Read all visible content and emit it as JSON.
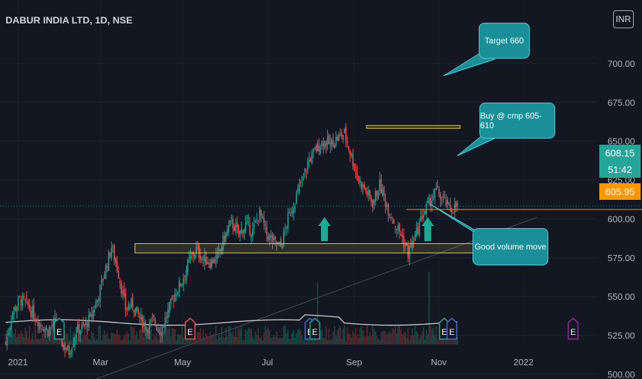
{
  "title": "DABUR INDIA LTD, 1D, NSE",
  "currency_button": "INR",
  "price_tags": {
    "last_price": "608.15",
    "countdown": "51:42",
    "level": "605.95"
  },
  "callouts": {
    "target": "Target 660",
    "buy": "Buy @ cmp 605-610",
    "volume": "Good volume move"
  },
  "event_marker_label": "E",
  "colors": {
    "up": "#26a69a",
    "down": "#ef5350",
    "zone": "#f0d84b",
    "callout": "#1b8f97",
    "arrow": "#1fa895",
    "background": "#131722"
  },
  "chart_data": {
    "type": "candlestick",
    "title": "DABUR INDIA LTD, 1D, NSE",
    "ylim": [
      488,
      700
    ],
    "y_ticks": [
      500,
      525,
      550,
      575,
      600,
      625,
      650,
      675,
      700
    ],
    "y_tick_labels": [
      "500.00",
      "525.00",
      "550.00",
      "575.00",
      "600.00",
      "625.00",
      "650.00",
      "675.00",
      "700.00"
    ],
    "x_labels": [
      "2021",
      "Mar",
      "May",
      "Jul",
      "Sep",
      "Nov",
      "2022"
    ],
    "last_price": 608.15,
    "horizontal_level": 605.95,
    "zones": [
      {
        "name": "support",
        "from": 578,
        "to": 584
      },
      {
        "name": "target",
        "from": 658.5,
        "to": 660
      }
    ],
    "close_path": [
      [
        1,
        520
      ],
      [
        6,
        540
      ],
      [
        11,
        548
      ],
      [
        16,
        545
      ],
      [
        21,
        538
      ],
      [
        26,
        532
      ],
      [
        31,
        528
      ],
      [
        36,
        533
      ],
      [
        41,
        520
      ],
      [
        46,
        514
      ],
      [
        51,
        528
      ],
      [
        56,
        530
      ],
      [
        61,
        536
      ],
      [
        66,
        548
      ],
      [
        71,
        565
      ],
      [
        76,
        582
      ],
      [
        81,
        565
      ],
      [
        86,
        542
      ],
      [
        91,
        545
      ],
      [
        96,
        536
      ],
      [
        101,
        530
      ],
      [
        106,
        534
      ],
      [
        111,
        528
      ],
      [
        116,
        540
      ],
      [
        121,
        552
      ],
      [
        126,
        560
      ],
      [
        131,
        573
      ],
      [
        136,
        580
      ],
      [
        141,
        574
      ],
      [
        146,
        572
      ],
      [
        151,
        575
      ],
      [
        156,
        588
      ],
      [
        161,
        598
      ],
      [
        166,
        590
      ],
      [
        171,
        596
      ],
      [
        176,
        592
      ],
      [
        181,
        604
      ],
      [
        186,
        590
      ],
      [
        191,
        585
      ],
      [
        196,
        582
      ],
      [
        201,
        600
      ],
      [
        206,
        612
      ],
      [
        211,
        625
      ],
      [
        216,
        638
      ],
      [
        221,
        645
      ],
      [
        226,
        650
      ],
      [
        231,
        648
      ],
      [
        236,
        652
      ],
      [
        241,
        655
      ],
      [
        246,
        640
      ],
      [
        251,
        625
      ],
      [
        256,
        618
      ],
      [
        261,
        610
      ],
      [
        266,
        622
      ],
      [
        271,
        608
      ],
      [
        276,
        598
      ],
      [
        281,
        590
      ],
      [
        286,
        578
      ],
      [
        291,
        588
      ],
      [
        296,
        602
      ],
      [
        301,
        610
      ],
      [
        306,
        618
      ],
      [
        311,
        612
      ],
      [
        316,
        606
      ],
      [
        321,
        608
      ]
    ],
    "callout_annotations": [
      "Target 660",
      "Buy @ cmp 605-610",
      "Good volume move"
    ]
  }
}
